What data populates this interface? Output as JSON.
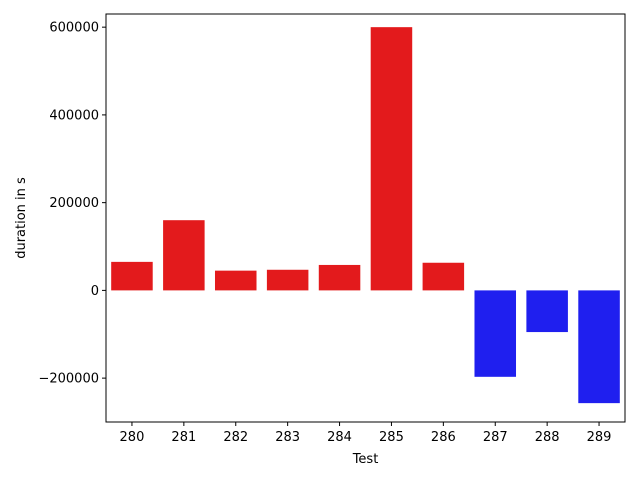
{
  "chart_data": {
    "type": "bar",
    "title": "",
    "xlabel": "Test",
    "ylabel": "duration in s",
    "categories": [
      "280",
      "281",
      "282",
      "283",
      "284",
      "285",
      "286",
      "287",
      "288",
      "289"
    ],
    "values": [
      65000,
      160000,
      45000,
      47000,
      58000,
      600000,
      63000,
      -197000,
      -95000,
      -257000
    ],
    "colors": [
      "#e31a1c",
      "#e31a1c",
      "#e31a1c",
      "#e31a1c",
      "#e31a1c",
      "#e31a1c",
      "#e31a1c",
      "#1f1fef",
      "#1f1fef",
      "#1f1fef"
    ],
    "ylim": [
      -300000,
      630000
    ],
    "yticks": [
      -200000,
      0,
      200000,
      400000,
      600000
    ],
    "ytick_labels": [
      "−200000",
      "0",
      "200000",
      "400000",
      "600000"
    ],
    "grid": false,
    "legend": "none"
  }
}
